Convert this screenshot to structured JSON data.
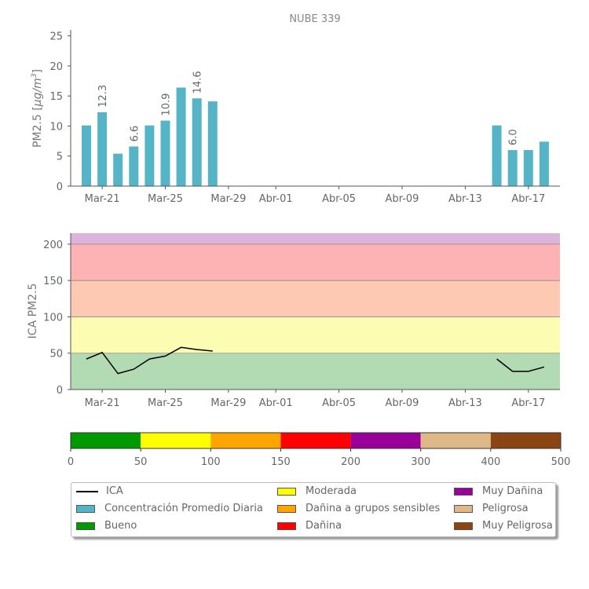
{
  "chart_data": [
    {
      "type": "bar",
      "title": "NUBE 339",
      "ylabel": "PM2.5 [μg/m³]",
      "ylabel_parts": {
        "main": "PM2.5 [",
        "unit": "μg/m",
        "exp": "3",
        "close": "]"
      },
      "ylim": [
        0,
        26
      ],
      "yticks": [
        "0",
        "5",
        "10",
        "15",
        "20",
        "25"
      ],
      "xticks": [
        "Mar-21",
        "Mar-25",
        "Mar-29",
        "Abr-01",
        "Abr-05",
        "Abr-09",
        "Abr-13",
        "Abr-17"
      ],
      "bar_color": "#56b4c7",
      "series": [
        {
          "name": "Concentración Promedio Diaria",
          "points": [
            {
              "day": 0,
              "value": 10.1
            },
            {
              "day": 1,
              "value": 12.3,
              "label": "12.3"
            },
            {
              "day": 2,
              "value": 5.4
            },
            {
              "day": 3,
              "value": 6.6,
              "label": "6.6"
            },
            {
              "day": 4,
              "value": 10.1
            },
            {
              "day": 5,
              "value": 10.9,
              "label": "10.9"
            },
            {
              "day": 6,
              "value": 16.4
            },
            {
              "day": 7,
              "value": 14.6,
              "label": "14.6"
            },
            {
              "day": 8,
              "value": 14.1
            },
            {
              "day": 26,
              "value": 10.1
            },
            {
              "day": 27,
              "value": 6.0,
              "label": "6.0"
            },
            {
              "day": 28,
              "value": 6.0
            },
            {
              "day": 29,
              "value": 7.4
            }
          ]
        }
      ]
    },
    {
      "type": "line",
      "ylabel": "ICA PM2.5",
      "ylim": [
        0,
        215
      ],
      "yticks": [
        "0",
        "50",
        "100",
        "150",
        "200"
      ],
      "xticks": [
        "Mar-21",
        "Mar-25",
        "Mar-29",
        "Abr-01",
        "Abr-05",
        "Abr-09",
        "Abr-13",
        "Abr-17"
      ],
      "bands": [
        {
          "from": 0,
          "to": 50,
          "color": "#b3dbb3"
        },
        {
          "from": 50,
          "to": 100,
          "color": "#fcfcb3"
        },
        {
          "from": 100,
          "to": 150,
          "color": "#fdc9b3"
        },
        {
          "from": 150,
          "to": 200,
          "color": "#fdb3b3"
        },
        {
          "from": 200,
          "to": 300,
          "color": "#dbb3db"
        }
      ],
      "series": [
        {
          "name": "ICA",
          "color": "#000000",
          "segments": [
            [
              [
                0,
                42
              ],
              [
                1,
                51
              ],
              [
                2,
                22
              ],
              [
                3,
                28
              ],
              [
                4,
                42
              ],
              [
                5,
                46
              ],
              [
                6,
                58
              ],
              [
                7,
                55
              ],
              [
                8,
                53
              ]
            ],
            [
              [
                26,
                42
              ],
              [
                27,
                25
              ],
              [
                28,
                25
              ],
              [
                29,
                31
              ]
            ]
          ]
        }
      ]
    },
    {
      "type": "colorbar",
      "ticks": [
        "0",
        "50",
        "100",
        "150",
        "200",
        "300",
        "400",
        "500"
      ],
      "segments": [
        {
          "color": "#009900"
        },
        {
          "color": "#ffff00"
        },
        {
          "color": "#ffa500"
        },
        {
          "color": "#ff0000"
        },
        {
          "color": "#990099"
        },
        {
          "color": "#deb887"
        },
        {
          "color": "#8b4513"
        }
      ]
    }
  ],
  "legend": {
    "items": [
      {
        "label": "ICA",
        "kind": "line",
        "color": "#000000"
      },
      {
        "label": "Concentración Promedio Diaria",
        "kind": "swatch",
        "color": "#56b4c7"
      },
      {
        "label": "Bueno",
        "kind": "swatch",
        "color": "#009900"
      },
      {
        "label": "Moderada",
        "kind": "swatch",
        "color": "#ffff00"
      },
      {
        "label": "Dañina a grupos sensibles",
        "kind": "swatch",
        "color": "#ffa500"
      },
      {
        "label": "Dañina",
        "kind": "swatch",
        "color": "#ff0000"
      },
      {
        "label": "Muy Dañina",
        "kind": "swatch",
        "color": "#990099"
      },
      {
        "label": "Peligrosa",
        "kind": "swatch",
        "color": "#deb887"
      },
      {
        "label": "Muy Peligrosa",
        "kind": "swatch",
        "color": "#8b4513"
      }
    ]
  }
}
